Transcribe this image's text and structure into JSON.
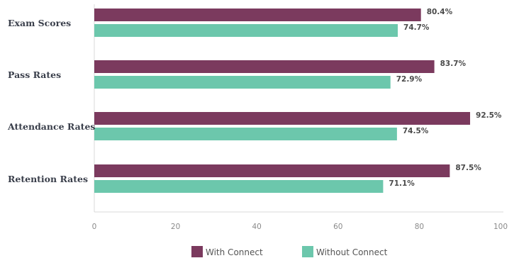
{
  "chart_data": {
    "type": "bar",
    "orientation": "horizontal",
    "categories": [
      "Exam Scores",
      "Pass Rates",
      "Attendance Rates",
      "Retention Rates"
    ],
    "series": [
      {
        "name": "With Connect",
        "color": "#7b3a5e",
        "values": [
          80.4,
          83.7,
          92.5,
          87.5
        ],
        "labels": [
          "80.4%",
          "83.7%",
          "92.5%",
          "87.5%"
        ]
      },
      {
        "name": "Without Connect",
        "color": "#6cc7ac",
        "values": [
          74.7,
          72.9,
          74.5,
          71.1
        ],
        "labels": [
          "74.7%",
          "72.9%",
          "74.5%",
          "71.1%"
        ]
      }
    ],
    "xlim": [
      0,
      100
    ],
    "xticks": [
      0,
      20,
      40,
      60,
      80,
      100
    ],
    "xtick_labels": [
      "0",
      "20",
      "40",
      "60",
      "80",
      "100"
    ],
    "grid": false,
    "legend_position": "bottom-center",
    "axis_color": "#d8d8d8"
  }
}
